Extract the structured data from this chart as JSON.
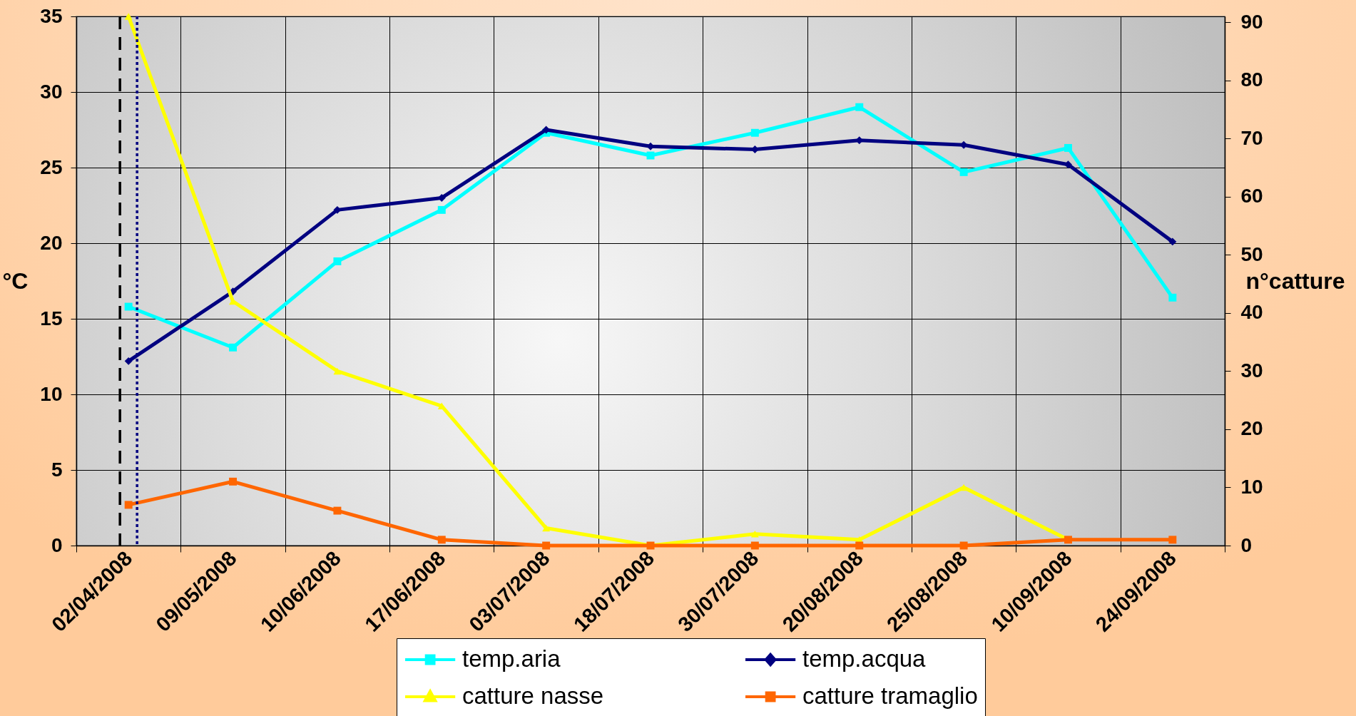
{
  "chart_data": {
    "type": "line",
    "categories": [
      "02/04/2008",
      "09/05/2008",
      "10/06/2008",
      "17/06/2008",
      "03/07/2008",
      "18/07/2008",
      "30/07/2008",
      "20/08/2008",
      "25/08/2008",
      "10/09/2008",
      "24/09/2008"
    ],
    "ylabel": "°C",
    "y2label": "n°catture",
    "ylim": [
      0,
      35
    ],
    "yticks": [
      0,
      5,
      10,
      15,
      20,
      25,
      30,
      35
    ],
    "y2lim": [
      0,
      91
    ],
    "y2ticks": [
      0,
      10,
      20,
      30,
      40,
      50,
      60,
      70,
      80,
      90
    ],
    "grid": true,
    "legend": "bottom",
    "series": [
      {
        "name": "temp.aria",
        "color": "#00FFFF",
        "marker": "square",
        "values": [
          15.8,
          13.1,
          18.8,
          22.2,
          27.3,
          25.8,
          27.3,
          29.0,
          24.7,
          26.3,
          16.4
        ]
      },
      {
        "name": "temp.acqua",
        "color": "#000080",
        "marker": "diamond",
        "values": [
          12.2,
          16.8,
          22.2,
          23.0,
          27.5,
          26.4,
          26.2,
          26.8,
          26.5,
          25.2,
          20.1
        ]
      },
      {
        "name": "catture nasse",
        "color": "#FFFF00",
        "marker": "triangle",
        "axis": "y2",
        "values": [
          91,
          42,
          30,
          24,
          3,
          0,
          2,
          1,
          10,
          1,
          null
        ]
      },
      {
        "name": "catture tramaglio",
        "color": "#FF6600",
        "marker": "square",
        "axis": "y2",
        "values": [
          7,
          11,
          6,
          1,
          0,
          0,
          0,
          0,
          0,
          1,
          1
        ]
      }
    ],
    "ref_lines": [
      {
        "axis": "x",
        "value": "02/04/2008",
        "color": "#000000",
        "line_style": "dashed"
      },
      {
        "axis": "x",
        "value": "02/04/2008",
        "color": "#000080",
        "line_style": "dotted"
      }
    ]
  }
}
